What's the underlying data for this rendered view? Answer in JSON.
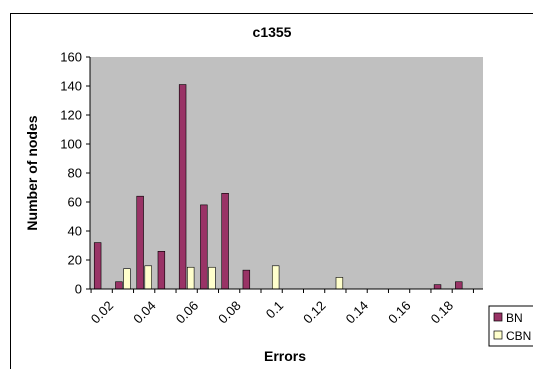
{
  "chart_data": {
    "type": "bar",
    "title": "c1355",
    "xlabel": "Errors",
    "ylabel": "Number of nodes",
    "ylim": [
      0,
      160
    ],
    "yticks": [
      "0",
      "20",
      "40",
      "60",
      "80",
      "100",
      "120",
      "140",
      "160"
    ],
    "xtick_labels": [
      "0.02",
      "0.04",
      "0.06",
      "0.08",
      "0.1",
      "0.12",
      "0.14",
      "0.16",
      "0.18"
    ],
    "categories": [
      "0.02",
      "0.03",
      "0.04",
      "0.05",
      "0.06",
      "0.07",
      "0.08",
      "0.09",
      "0.1",
      "0.11",
      "0.12",
      "0.13",
      "0.14",
      "0.15",
      "0.16",
      "0.17",
      "0.18",
      "0.19"
    ],
    "series": [
      {
        "name": "BN",
        "color": "#993366",
        "values": [
          32,
          5,
          64,
          26,
          141,
          58,
          66,
          13,
          0,
          0,
          0,
          0,
          0,
          0,
          0,
          0,
          3,
          5
        ]
      },
      {
        "name": "CBN",
        "color": "#ffffcc",
        "values": [
          0,
          14,
          16,
          0,
          15,
          15,
          0,
          0,
          16,
          0,
          0,
          8,
          0,
          0,
          0,
          0,
          0,
          0
        ]
      }
    ],
    "grid": false,
    "plot_background": "#c0c0c0",
    "legend_position": "bottom-right"
  }
}
